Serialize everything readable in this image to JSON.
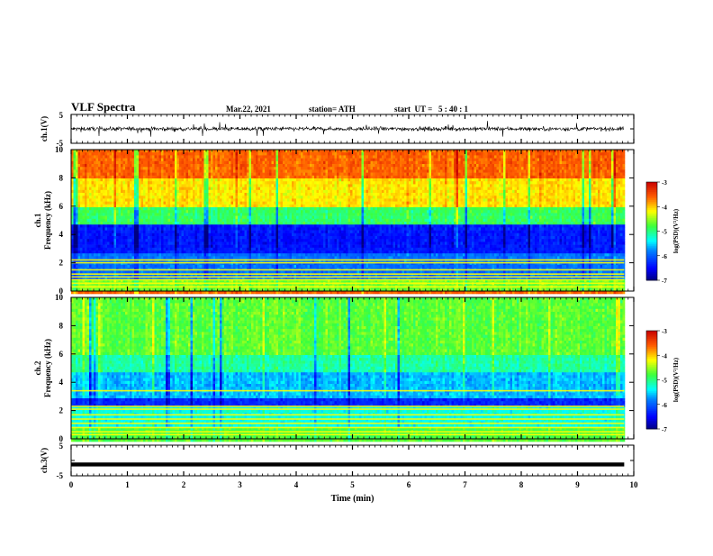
{
  "header": {
    "title": "VLF Spectra",
    "date": "Mar.22, 2021",
    "station": "station= ATH",
    "start": "start  UT =   5 : 40 : 1"
  },
  "chart_data": [
    {
      "type": "line",
      "name": "ch1-waveform",
      "ylabel": "ch.1(V)",
      "ylim": [
        -5,
        5
      ],
      "yticks": [
        "5",
        "-5"
      ],
      "xlim": [
        0,
        10
      ],
      "x_end": 9.83,
      "approx_level": 0,
      "approx_amplitude": 1.2
    },
    {
      "type": "heatmap",
      "name": "ch1-spectrogram",
      "ylabel": "ch.1 Frequency (kHz)",
      "ylim": [
        0,
        10
      ],
      "yticks": [
        "0",
        "2",
        "4",
        "6",
        "8",
        "10"
      ],
      "xlim": [
        0,
        10
      ],
      "x_end": 9.83,
      "colorbar": {
        "label": "log(PSD)(V²/Hz)",
        "ticks": [
          "-3",
          "-4",
          "-5",
          "-6",
          "-7"
        ],
        "range": [
          -7,
          -3
        ]
      },
      "bands": [
        {
          "f": [
            8,
            10
          ],
          "level": -3.6
        },
        {
          "f": [
            6,
            8
          ],
          "level": -4.1
        },
        {
          "f": [
            4.6,
            6
          ],
          "level": -4.9
        },
        {
          "f": [
            2.6,
            4.6
          ],
          "level": -6.4
        },
        {
          "f": [
            0.8,
            2.6
          ],
          "level": -5.9
        },
        {
          "f": [
            0,
            0.8
          ],
          "level": -4.6
        }
      ],
      "lines_khz": [
        0.3,
        0.55,
        0.8,
        1.0,
        1.2,
        1.5,
        2.0,
        2.2
      ]
    },
    {
      "type": "heatmap",
      "name": "ch2-spectrogram",
      "ylabel": "ch.2 Frequency (kHz)",
      "ylim": [
        0,
        10
      ],
      "yticks": [
        "0",
        "2",
        "4",
        "6",
        "8",
        "10"
      ],
      "xlim": [
        0,
        10
      ],
      "x_end": 9.83,
      "colorbar": {
        "label": "log(PSD)(V²/Hz)",
        "ticks": [
          "-3",
          "-4",
          "-5",
          "-6",
          "-7"
        ],
        "range": [
          -7,
          -3
        ]
      },
      "bands": [
        {
          "f": [
            6,
            10
          ],
          "level": -4.7
        },
        {
          "f": [
            4.6,
            6
          ],
          "level": -5.1
        },
        {
          "f": [
            2.8,
            4.6
          ],
          "level": -5.6
        },
        {
          "f": [
            2.2,
            2.8
          ],
          "level": -6.3
        },
        {
          "f": [
            0.8,
            2.2
          ],
          "level": -5.3
        },
        {
          "f": [
            0,
            0.8
          ],
          "level": -4.8
        }
      ],
      "lines_khz": [
        0.3,
        0.5,
        0.8,
        1.1,
        1.4,
        1.7,
        2.1,
        2.3,
        3.4
      ]
    },
    {
      "type": "line",
      "name": "ch3-waveform",
      "ylabel": "ch.3(V)",
      "ylim": [
        -5,
        5
      ],
      "yticks": [
        "5",
        "-5"
      ],
      "xlim": [
        0,
        10
      ],
      "x_end": 9.83,
      "approx_level": -1.3,
      "approx_amplitude": 0.2
    }
  ],
  "x_axis": {
    "label": "Time (min)",
    "ticks": [
      "0",
      "1",
      "2",
      "3",
      "4",
      "5",
      "6",
      "7",
      "8",
      "9",
      "10"
    ]
  }
}
